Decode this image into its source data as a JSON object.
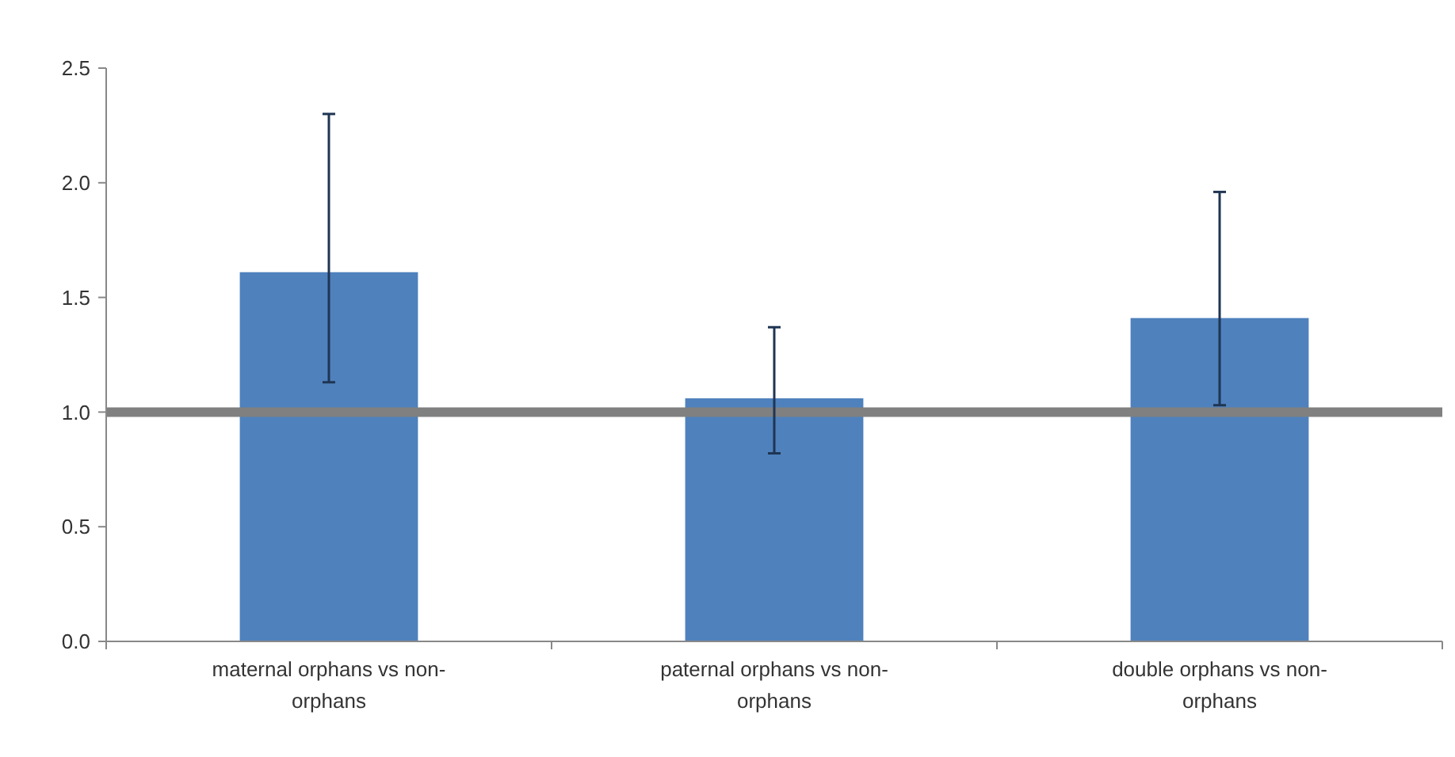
{
  "chart_data": {
    "type": "bar",
    "categories": [
      "maternal orphans vs non-orphans",
      "paternal orphans vs non-orphans",
      "double orphans vs non-orphans"
    ],
    "values": [
      1.61,
      1.06,
      1.41
    ],
    "color": "#4f81bd",
    "errors": [
      [
        1.13,
        2.3
      ],
      [
        0.82,
        1.37
      ],
      [
        1.03,
        1.96
      ]
    ],
    "ylim": [
      0,
      2.5
    ],
    "yticks": [
      {
        "value": 0,
        "label": "0.0"
      },
      {
        "value": 0.5,
        "label": "0.5"
      },
      {
        "value": 1,
        "label": "1.0"
      },
      {
        "value": 1.5,
        "label": "1.5"
      },
      {
        "value": 2,
        "label": "2.0"
      },
      {
        "value": 2.5,
        "label": "2.5"
      }
    ],
    "ref_lines": [
      {
        "axis": "y",
        "value": 1,
        "color": "#808080"
      }
    ],
    "grid": false
  }
}
